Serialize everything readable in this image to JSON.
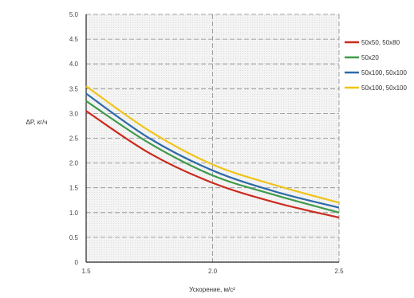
{
  "chart_data": {
    "type": "line",
    "title": "",
    "xlabel": "Ускорение, м/с²",
    "ylabel": "ΔP, кг/ч",
    "xlim": [
      1.5,
      2.5
    ],
    "ylim": [
      0,
      5.0
    ],
    "x_ticks": [
      "1.5",
      "2.0",
      "2.5"
    ],
    "y_ticks": [
      "0",
      "0.5",
      "1.0",
      "1.5",
      "2.0",
      "2.5",
      "3.0",
      "3.5",
      "4.0",
      "4.5",
      "5.0"
    ],
    "grid": true,
    "legend_position": "right",
    "series": [
      {
        "name": "50x50, 50x80",
        "color": "#cc2a1e",
        "x": [
          1.5,
          1.75,
          2.0,
          2.25,
          2.5
        ],
        "y": [
          3.05,
          2.2,
          1.6,
          1.2,
          0.9
        ]
      },
      {
        "name": "50x20",
        "color": "#3e9a4a",
        "x": [
          1.5,
          1.75,
          2.0,
          2.25,
          2.5
        ],
        "y": [
          3.25,
          2.4,
          1.75,
          1.35,
          1.0
        ]
      },
      {
        "name": "50x100, 50x100",
        "color": "#2e6aa8",
        "x": [
          1.5,
          1.75,
          2.0,
          2.25,
          2.5
        ],
        "y": [
          3.4,
          2.5,
          1.85,
          1.42,
          1.1
        ]
      },
      {
        "name": "50x100, 50x100",
        "color": "#f0c419",
        "x": [
          1.5,
          1.75,
          2.0,
          2.25,
          2.5
        ],
        "y": [
          3.55,
          2.65,
          1.97,
          1.55,
          1.2
        ]
      }
    ]
  }
}
